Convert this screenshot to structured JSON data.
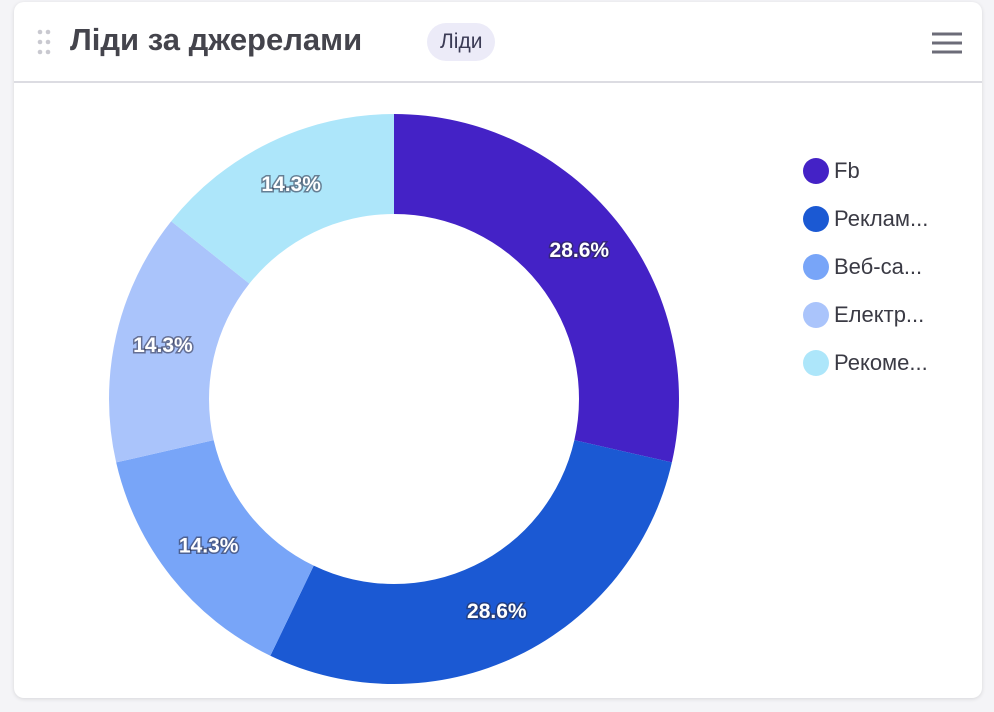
{
  "header": {
    "title": "Ліди за джерелами",
    "badge": "Ліди"
  },
  "chart_data": {
    "type": "doughnut",
    "categories": [
      "Fb",
      "Реклам...",
      "Веб-са...",
      "Електр...",
      "Рекоме..."
    ],
    "values": [
      28.6,
      28.6,
      14.3,
      14.3,
      14.3
    ],
    "value_labels": [
      "28.6%",
      "28.6%",
      "14.3%",
      "14.3%",
      "14.3%"
    ],
    "colors": [
      "#4422c6",
      "#1b59d3",
      "#78a5f8",
      "#aac4fb",
      "#ade6fa"
    ],
    "legend": "right"
  }
}
